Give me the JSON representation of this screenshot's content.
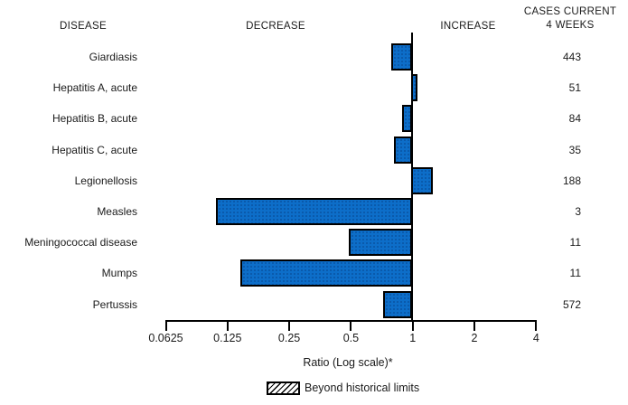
{
  "header": {
    "disease": "DISEASE",
    "decrease": "DECREASE",
    "increase": "INCREASE",
    "cases_line1": "CASES CURRENT",
    "cases_line2": "4 WEEKS"
  },
  "chart_data": {
    "type": "bar",
    "orientation": "horizontal",
    "scale": "log2",
    "xlabel": "Ratio (Log scale)*",
    "xlim": [
      0.0625,
      4
    ],
    "baseline": 1,
    "x_ticks": [
      0.0625,
      0.125,
      0.25,
      0.5,
      1,
      2,
      4
    ],
    "x_tick_labels": [
      "0.0625",
      "0.125",
      "0.25",
      "0.5",
      "1",
      "2",
      "4"
    ],
    "grid": false,
    "legend_position": "bottom",
    "rows": [
      {
        "disease": "Giardiasis",
        "ratio": 0.79,
        "cases": 443,
        "beyond_historical_limits": false
      },
      {
        "disease": "Hepatitis A, acute",
        "ratio": 1.06,
        "cases": 51,
        "beyond_historical_limits": false
      },
      {
        "disease": "Hepatitis B, acute",
        "ratio": 0.89,
        "cases": 84,
        "beyond_historical_limits": false
      },
      {
        "disease": "Hepatitis C, acute",
        "ratio": 0.81,
        "cases": 35,
        "beyond_historical_limits": false
      },
      {
        "disease": "Legionellosis",
        "ratio": 1.25,
        "cases": 188,
        "beyond_historical_limits": false
      },
      {
        "disease": "Measles",
        "ratio": 0.11,
        "cases": 3,
        "beyond_historical_limits": false
      },
      {
        "disease": "Meningococcal disease",
        "ratio": 0.49,
        "cases": 11,
        "beyond_historical_limits": false
      },
      {
        "disease": "Mumps",
        "ratio": 0.145,
        "cases": 11,
        "beyond_historical_limits": false
      },
      {
        "disease": "Pertussis",
        "ratio": 0.72,
        "cases": 572,
        "beyond_historical_limits": false
      }
    ],
    "legend": {
      "label": "Beyond historical limits",
      "swatch": "diagonal-hatch"
    },
    "colors": {
      "bar_fill": "#0d6ec9",
      "bar_border": "#000000",
      "axis": "#000000",
      "text": "#1a1a1a"
    }
  }
}
